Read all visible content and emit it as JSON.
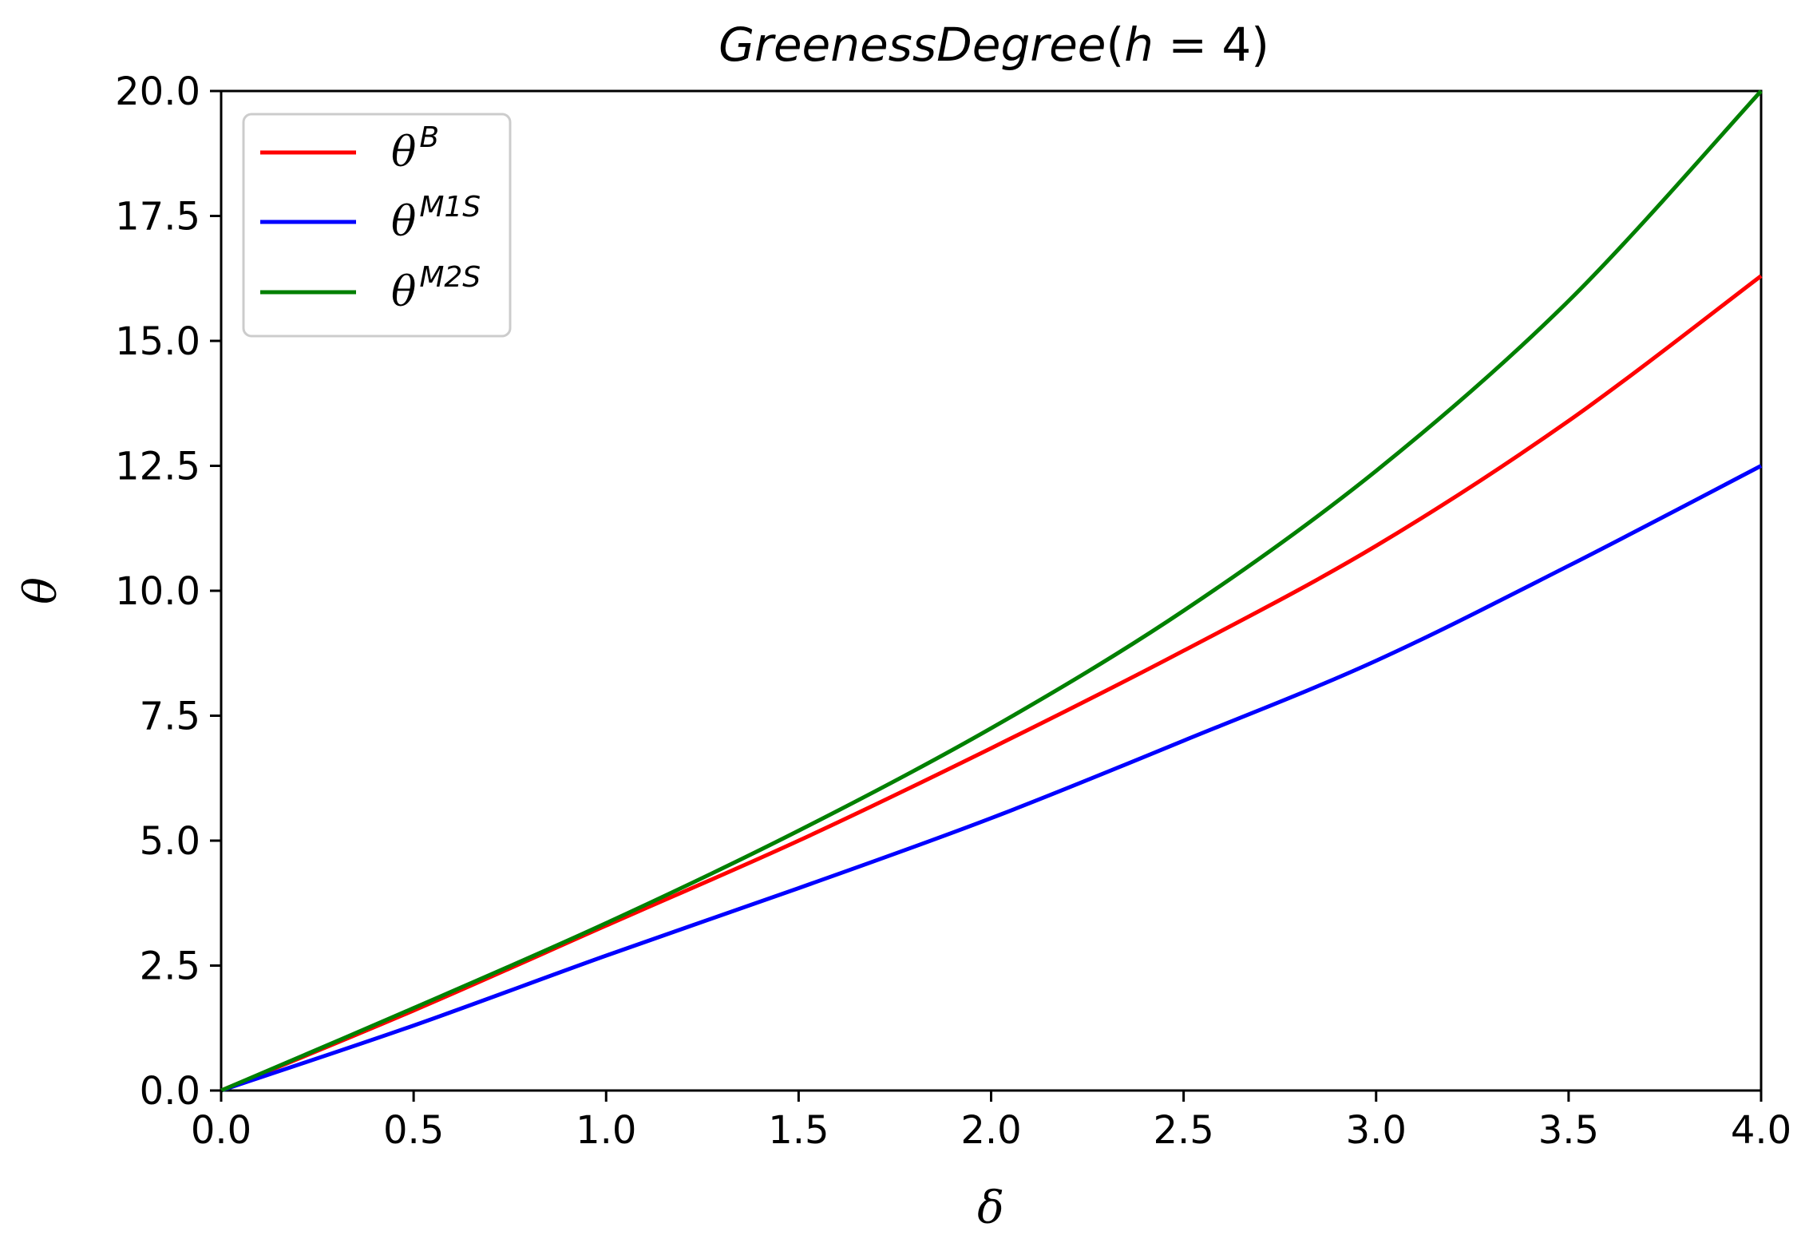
{
  "chart_data": {
    "type": "line",
    "title": "GreenessDegree(h = 4)",
    "title_parts": {
      "name": "GreenessDegree",
      "open": "(",
      "var": "h",
      "eq": " = 4",
      "close": ")"
    },
    "xlabel": "δ",
    "ylabel": "θ",
    "xlim": [
      0.0,
      4.0
    ],
    "ylim": [
      0.0,
      20.0
    ],
    "xticks": [
      "0.0",
      "0.5",
      "1.0",
      "1.5",
      "2.0",
      "2.5",
      "3.0",
      "3.5",
      "4.0"
    ],
    "yticks": [
      "0.0",
      "2.5",
      "5.0",
      "7.5",
      "10.0",
      "12.5",
      "15.0",
      "17.5",
      "20.0"
    ],
    "grid": false,
    "legend_position": "top-left",
    "x": [
      0.0,
      0.5,
      1.0,
      1.5,
      2.0,
      2.5,
      3.0,
      3.5,
      4.0
    ],
    "series": [
      {
        "name": "θ^B",
        "base": "θ",
        "sup": "B",
        "color": "#ff0000",
        "values": [
          0.0,
          1.6,
          3.3,
          5.0,
          6.85,
          8.8,
          10.9,
          13.4,
          16.3
        ]
      },
      {
        "name": "θ^M1S",
        "base": "θ",
        "sup": "M1S",
        "color": "#0000ff",
        "values": [
          0.0,
          1.3,
          2.7,
          4.05,
          5.45,
          7.0,
          8.6,
          10.5,
          12.5
        ]
      },
      {
        "name": "θ^M2S",
        "base": "θ",
        "sup": "M2S",
        "color": "#008000",
        "values": [
          0.0,
          1.65,
          3.35,
          5.2,
          7.25,
          9.6,
          12.4,
          15.8,
          20.0
        ]
      }
    ]
  }
}
